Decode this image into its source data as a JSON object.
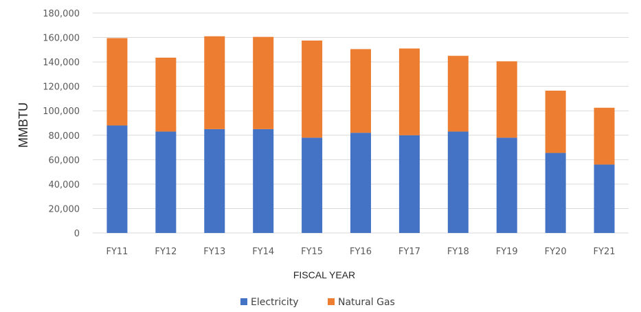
{
  "chart_data": {
    "type": "bar",
    "stacked": true,
    "title": "",
    "xlabel": "FISCAL YEAR",
    "ylabel": "MMBTU",
    "ylim": [
      0,
      180000
    ],
    "yticks": [
      "180,000",
      "160,000",
      "140,000",
      "120,000",
      "100,000",
      "80,000",
      "60,000",
      "40,000",
      "20,000",
      "0"
    ],
    "ytick_values": [
      180000,
      160000,
      140000,
      120000,
      100000,
      80000,
      60000,
      40000,
      20000,
      0
    ],
    "categories": [
      "FY11",
      "FY12",
      "FY13",
      "FY14",
      "FY15",
      "FY16",
      "FY17",
      "FY18",
      "FY19",
      "FY20",
      "FY21"
    ],
    "series": [
      {
        "name": "Electricity",
        "color": "#4472c4",
        "values": [
          88000,
          83000,
          85000,
          85000,
          78000,
          82000,
          80000,
          83000,
          78000,
          65500,
          56000
        ]
      },
      {
        "name": "Natural Gas",
        "color": "#ed7d31",
        "values": [
          71500,
          60500,
          76000,
          75500,
          79500,
          68500,
          71000,
          62000,
          62500,
          51000,
          46500
        ]
      }
    ],
    "grid": true,
    "legend_position": "bottom"
  }
}
